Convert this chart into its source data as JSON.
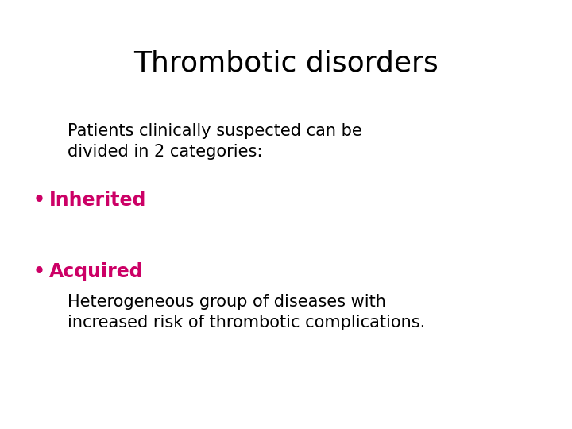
{
  "title": "Thrombotic disorders",
  "title_fontsize": 26,
  "title_color": "#000000",
  "background_color": "#ffffff",
  "body_text_color": "#000000",
  "highlight_color": "#CC0066",
  "body_fontsize": 15,
  "highlight_fontsize": 17,
  "intro_line1": "Patients clinically suspected can be",
  "intro_line2": "divided in 2 categories:",
  "bullet1_label": "Inherited",
  "bullet2_label": "Acquired",
  "bullet2_desc1": "Heterogeneous group of diseases with",
  "bullet2_desc2": "increased risk of thrombotic complications.",
  "font_family": "DejaVu Sans"
}
